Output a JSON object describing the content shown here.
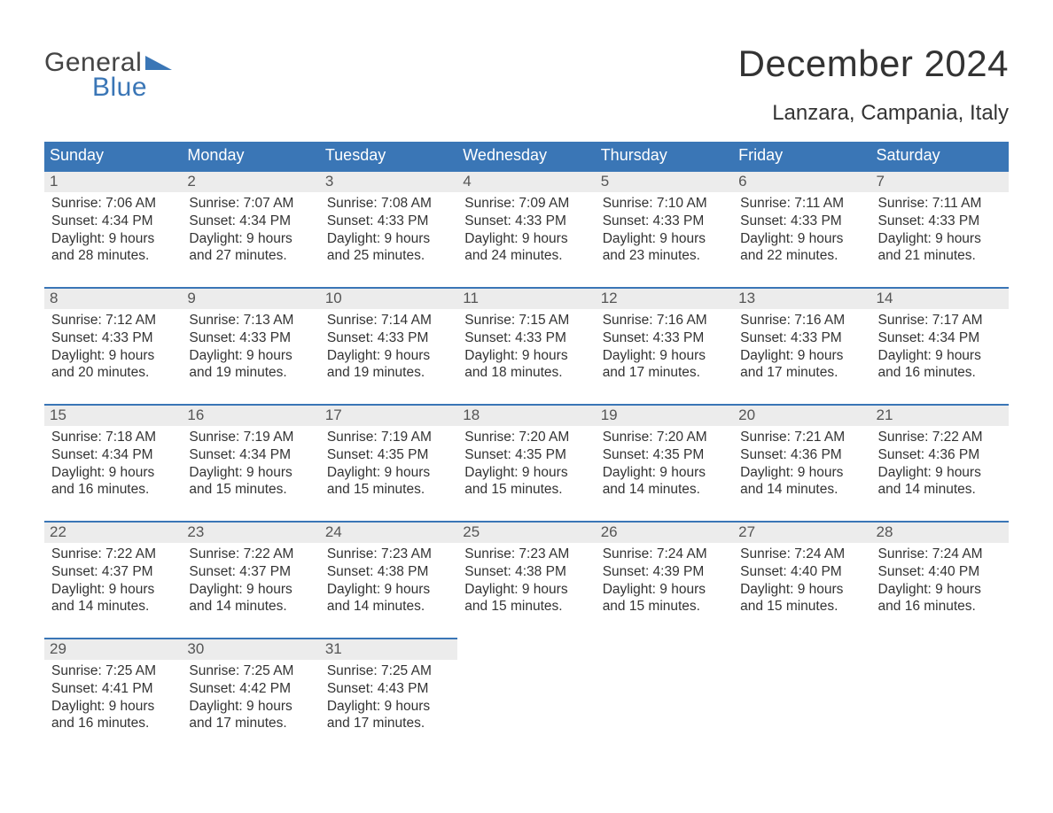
{
  "brand": {
    "word1": "General",
    "word2": "Blue",
    "word2_color": "#3a76b6",
    "tri_color": "#3a76b6"
  },
  "title": "December 2024",
  "location": "Lanzara, Campania, Italy",
  "colors": {
    "header_bg": "#3a76b6",
    "header_text": "#ffffff",
    "row_border": "#3a76b6",
    "daynum_bg": "#ececec",
    "text": "#333333"
  },
  "weekdays": [
    "Sunday",
    "Monday",
    "Tuesday",
    "Wednesday",
    "Thursday",
    "Friday",
    "Saturday"
  ],
  "weeks": [
    [
      {
        "n": "1",
        "sr": "7:06 AM",
        "ss": "4:34 PM",
        "dl": "9 hours and 28 minutes."
      },
      {
        "n": "2",
        "sr": "7:07 AM",
        "ss": "4:34 PM",
        "dl": "9 hours and 27 minutes."
      },
      {
        "n": "3",
        "sr": "7:08 AM",
        "ss": "4:33 PM",
        "dl": "9 hours and 25 minutes."
      },
      {
        "n": "4",
        "sr": "7:09 AM",
        "ss": "4:33 PM",
        "dl": "9 hours and 24 minutes."
      },
      {
        "n": "5",
        "sr": "7:10 AM",
        "ss": "4:33 PM",
        "dl": "9 hours and 23 minutes."
      },
      {
        "n": "6",
        "sr": "7:11 AM",
        "ss": "4:33 PM",
        "dl": "9 hours and 22 minutes."
      },
      {
        "n": "7",
        "sr": "7:11 AM",
        "ss": "4:33 PM",
        "dl": "9 hours and 21 minutes."
      }
    ],
    [
      {
        "n": "8",
        "sr": "7:12 AM",
        "ss": "4:33 PM",
        "dl": "9 hours and 20 minutes."
      },
      {
        "n": "9",
        "sr": "7:13 AM",
        "ss": "4:33 PM",
        "dl": "9 hours and 19 minutes."
      },
      {
        "n": "10",
        "sr": "7:14 AM",
        "ss": "4:33 PM",
        "dl": "9 hours and 19 minutes."
      },
      {
        "n": "11",
        "sr": "7:15 AM",
        "ss": "4:33 PM",
        "dl": "9 hours and 18 minutes."
      },
      {
        "n": "12",
        "sr": "7:16 AM",
        "ss": "4:33 PM",
        "dl": "9 hours and 17 minutes."
      },
      {
        "n": "13",
        "sr": "7:16 AM",
        "ss": "4:33 PM",
        "dl": "9 hours and 17 minutes."
      },
      {
        "n": "14",
        "sr": "7:17 AM",
        "ss": "4:34 PM",
        "dl": "9 hours and 16 minutes."
      }
    ],
    [
      {
        "n": "15",
        "sr": "7:18 AM",
        "ss": "4:34 PM",
        "dl": "9 hours and 16 minutes."
      },
      {
        "n": "16",
        "sr": "7:19 AM",
        "ss": "4:34 PM",
        "dl": "9 hours and 15 minutes."
      },
      {
        "n": "17",
        "sr": "7:19 AM",
        "ss": "4:35 PM",
        "dl": "9 hours and 15 minutes."
      },
      {
        "n": "18",
        "sr": "7:20 AM",
        "ss": "4:35 PM",
        "dl": "9 hours and 15 minutes."
      },
      {
        "n": "19",
        "sr": "7:20 AM",
        "ss": "4:35 PM",
        "dl": "9 hours and 14 minutes."
      },
      {
        "n": "20",
        "sr": "7:21 AM",
        "ss": "4:36 PM",
        "dl": "9 hours and 14 minutes."
      },
      {
        "n": "21",
        "sr": "7:22 AM",
        "ss": "4:36 PM",
        "dl": "9 hours and 14 minutes."
      }
    ],
    [
      {
        "n": "22",
        "sr": "7:22 AM",
        "ss": "4:37 PM",
        "dl": "9 hours and 14 minutes."
      },
      {
        "n": "23",
        "sr": "7:22 AM",
        "ss": "4:37 PM",
        "dl": "9 hours and 14 minutes."
      },
      {
        "n": "24",
        "sr": "7:23 AM",
        "ss": "4:38 PM",
        "dl": "9 hours and 14 minutes."
      },
      {
        "n": "25",
        "sr": "7:23 AM",
        "ss": "4:38 PM",
        "dl": "9 hours and 15 minutes."
      },
      {
        "n": "26",
        "sr": "7:24 AM",
        "ss": "4:39 PM",
        "dl": "9 hours and 15 minutes."
      },
      {
        "n": "27",
        "sr": "7:24 AM",
        "ss": "4:40 PM",
        "dl": "9 hours and 15 minutes."
      },
      {
        "n": "28",
        "sr": "7:24 AM",
        "ss": "4:40 PM",
        "dl": "9 hours and 16 minutes."
      }
    ],
    [
      {
        "n": "29",
        "sr": "7:25 AM",
        "ss": "4:41 PM",
        "dl": "9 hours and 16 minutes."
      },
      {
        "n": "30",
        "sr": "7:25 AM",
        "ss": "4:42 PM",
        "dl": "9 hours and 17 minutes."
      },
      {
        "n": "31",
        "sr": "7:25 AM",
        "ss": "4:43 PM",
        "dl": "9 hours and 17 minutes."
      },
      null,
      null,
      null,
      null
    ]
  ],
  "labels": {
    "sunrise": "Sunrise: ",
    "sunset": "Sunset: ",
    "daylight": "Daylight: "
  }
}
